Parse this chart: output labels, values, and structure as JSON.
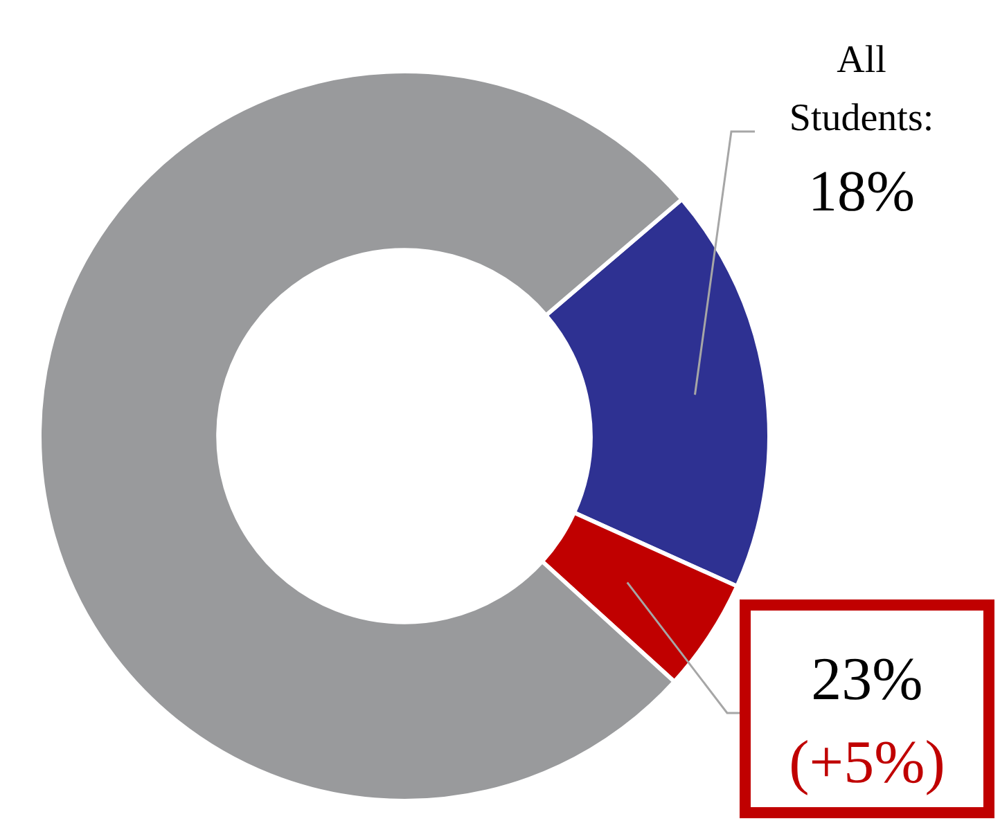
{
  "chart_data": {
    "type": "donut",
    "categories": [
      null,
      null,
      null
    ],
    "values": [
      18,
      5,
      77
    ],
    "colors": [
      "#2e3192",
      "#c00000",
      "#999a9c"
    ],
    "annotations": [
      "All Students:",
      "18%",
      "23%",
      "(+5%)"
    ],
    "legend": false
  }
}
